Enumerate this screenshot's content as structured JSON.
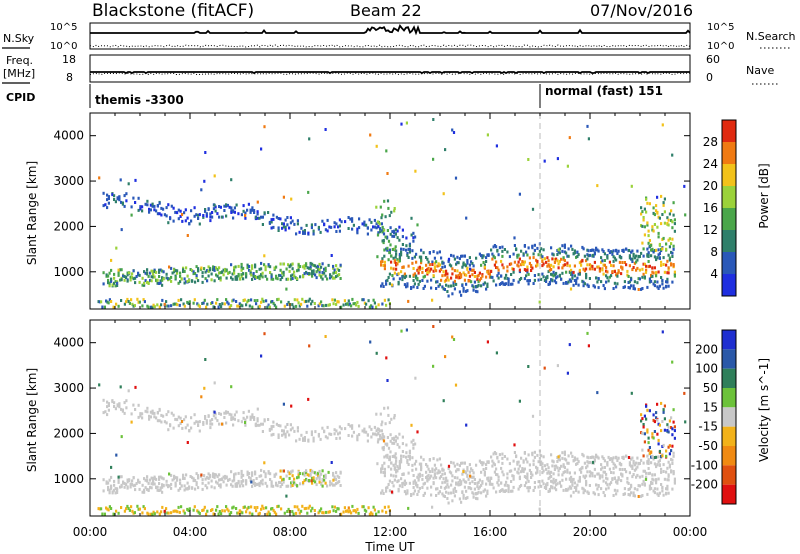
{
  "header": {
    "title": "Blackstone (fitACF)",
    "beam": "Beam 22",
    "date": "07/Nov/2016"
  },
  "top_panels": {
    "left_labels": {
      "nsky": "N.Sky",
      "freq": "Freq.",
      "freq_unit": "[MHz]",
      "cpid": "CPID"
    },
    "right_labels": {
      "nsearch": "N.Search",
      "nave": "Nave"
    },
    "noise_ticks_left": [
      "10^5",
      "10^0"
    ],
    "noise_ticks_right": [
      "10^5",
      "10^0"
    ],
    "freq_ticks": [
      "18",
      "8"
    ],
    "nave_ticks": [
      "60",
      "0"
    ],
    "cpid_entries": [
      {
        "text": "themis -3300",
        "start_hour": 0
      },
      {
        "text": "normal (fast) 151",
        "start_hour": 18
      }
    ]
  },
  "chart_data": [
    {
      "type": "heatmap",
      "name": "power",
      "ylabel": "Slant Range [km]",
      "xlabel": "Time UT",
      "xlim": [
        0,
        24
      ],
      "ylim": [
        180,
        4500
      ],
      "yticks": [
        1000,
        2000,
        3000,
        4000
      ],
      "xtick_labels": [
        "00:00",
        "04:00",
        "08:00",
        "12:00",
        "16:00",
        "20:00",
        "00:00"
      ],
      "colorbar": {
        "label": "Power [dB]",
        "ticks": [
          "4",
          "8",
          "12",
          "16",
          "20",
          "24",
          "28"
        ],
        "colors": [
          "#1f2fe0",
          "#2a58b8",
          "#2f7f6a",
          "#4aa64a",
          "#9bd23a",
          "#f2c21a",
          "#f07a12",
          "#e02a10"
        ]
      }
    },
    {
      "type": "heatmap",
      "name": "velocity",
      "ylabel": "Slant Range [km]",
      "xlabel": "Time UT",
      "xlim": [
        0,
        24
      ],
      "ylim": [
        180,
        4500
      ],
      "yticks": [
        1000,
        2000,
        3000,
        4000
      ],
      "xtick_labels": [
        "00:00",
        "04:00",
        "08:00",
        "12:00",
        "16:00",
        "20:00",
        "00:00"
      ],
      "colorbar": {
        "label": "Velocity [m s^-1]",
        "ticks": [
          "200",
          "100",
          "50",
          "15",
          "-15",
          "-50",
          "-100",
          "-200"
        ],
        "colors": [
          "#1f2fd0",
          "#2a58a8",
          "#2f7f5a",
          "#6cc23a",
          "#c8c8c8",
          "#f2b21a",
          "#f08a12",
          "#e05010",
          "#e01010"
        ]
      }
    }
  ],
  "colors": {
    "scatter_gray": "#c4c4c4",
    "ionospheric_band_core": "#e83a12",
    "dashed_marker": "#bbbbbb"
  }
}
